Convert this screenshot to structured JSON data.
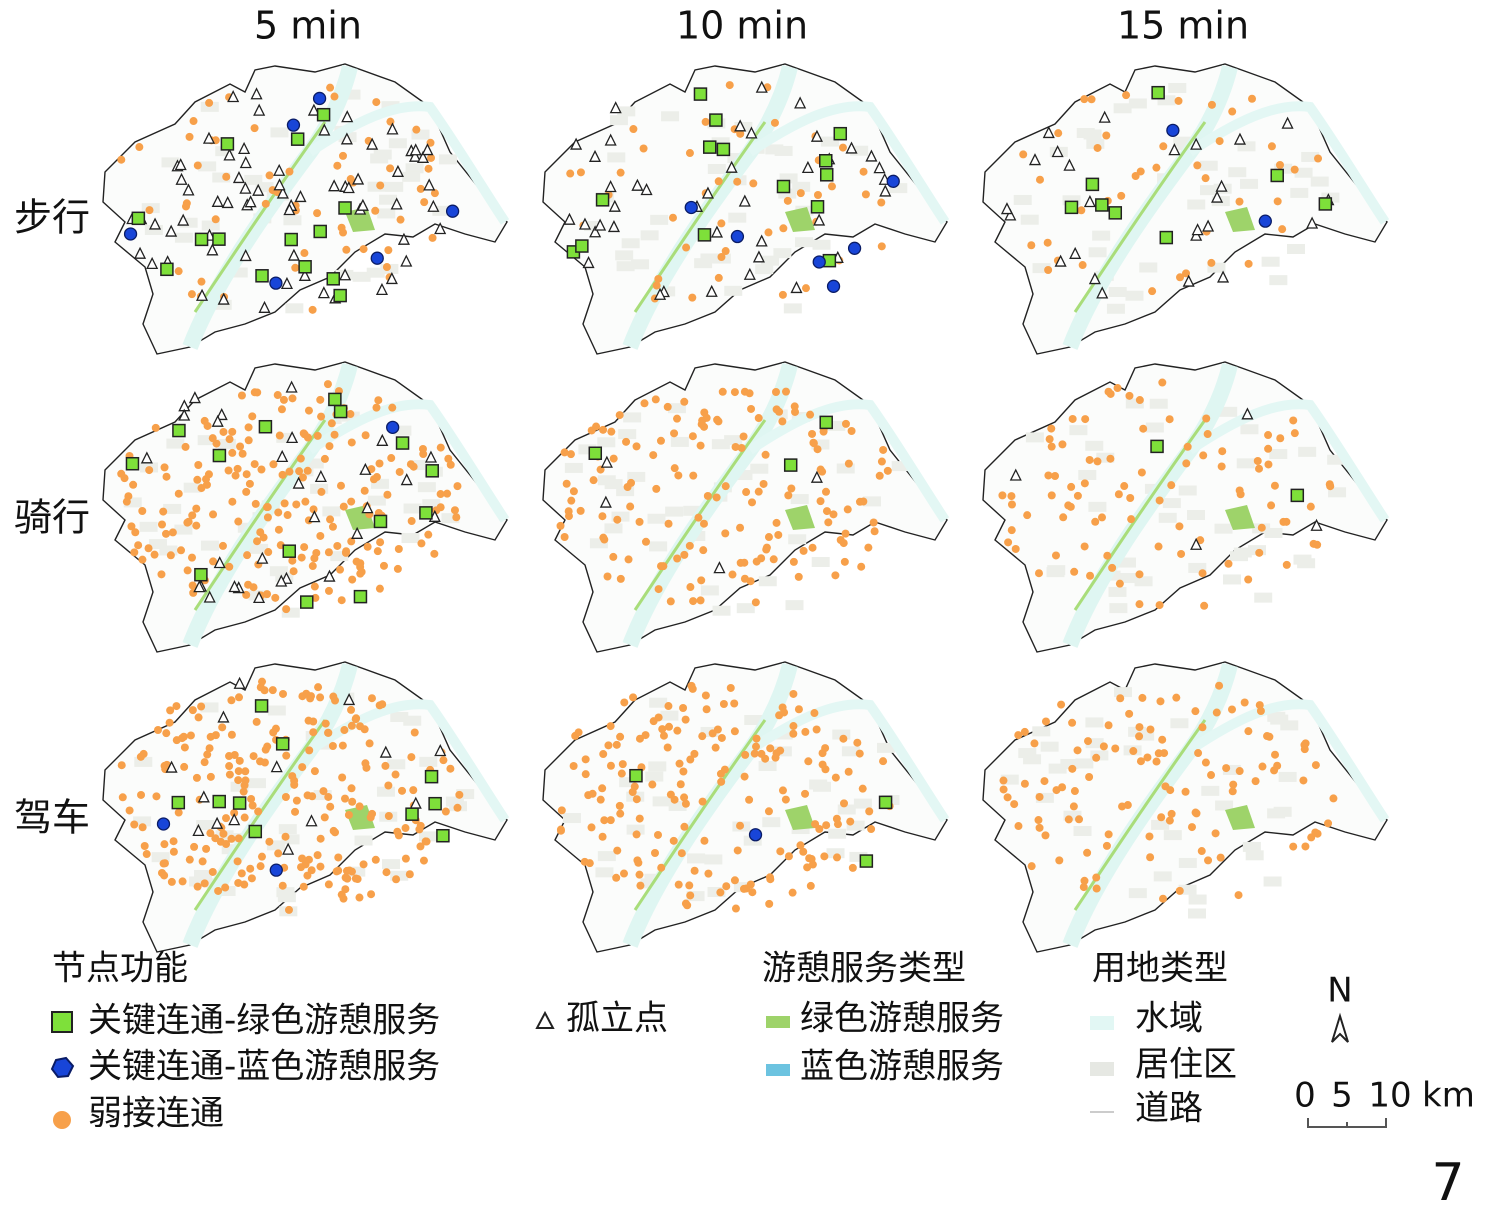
{
  "columns": [
    "5 min",
    "10 min",
    "15 min"
  ],
  "rows": [
    "步行",
    "骑行",
    "驾车"
  ],
  "legend": {
    "node_function": {
      "title": "节点功能",
      "items": [
        "关键连通-绿色游憩服务",
        "关键连通-蓝色游憩服务",
        "弱接连通",
        "孤立点"
      ]
    },
    "service_type": {
      "title": "游憩服务类型",
      "items": [
        "绿色游憩服务",
        "蓝色游憩服务"
      ]
    },
    "land_use": {
      "title": "用地类型",
      "items": [
        "水域",
        "居住区",
        "道路"
      ]
    }
  },
  "north": "N",
  "scale": {
    "ticks": [
      0,
      5,
      10
    ],
    "unit": "km"
  },
  "figure_number": 7
}
